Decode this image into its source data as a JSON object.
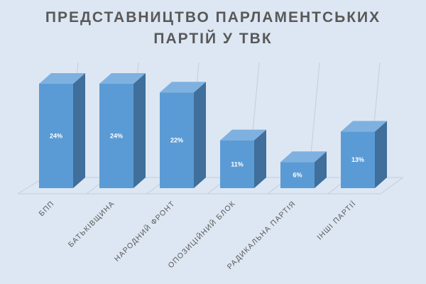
{
  "chart_data": {
    "type": "bar",
    "title": [
      "ПРЕДСТАВНИЦТВО ПАРЛАМЕНТСЬКИХ",
      "ПАРТІЙ У ТВК"
    ],
    "categories": [
      "БПП",
      "БАТЬКІВЩИНА",
      "НАРОДНИЙ ФРОНТ",
      "ОПОЗИЦІЙНИЙ БЛОК",
      "РАДИКАЛЬНА ПАРТІЯ",
      "ІНШІ ПАРТІЇ"
    ],
    "values": [
      24,
      24,
      22,
      11,
      6,
      13
    ],
    "data_labels": [
      "24%",
      "24%",
      "22%",
      "11%",
      "6%",
      "13%"
    ],
    "ylim": [
      0,
      25
    ],
    "colors": {
      "bar_front": "#5b9bd5",
      "bar_side": "#3f6f9a",
      "bar_top": "#7fb1e0",
      "grid": "#c4cedb",
      "background": "#dde7f3"
    }
  }
}
